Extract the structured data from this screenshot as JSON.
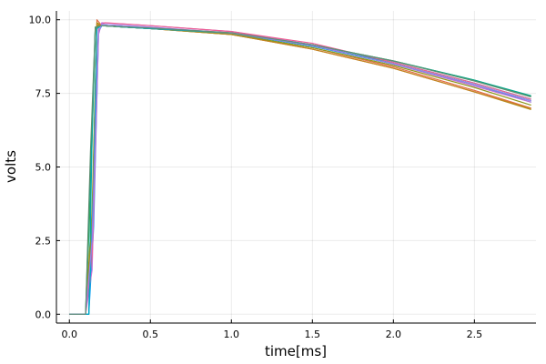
{
  "chart_data": {
    "type": "line",
    "title": "",
    "xlabel": "time[ms]",
    "ylabel": "volts",
    "xlim": [
      -0.08,
      2.88
    ],
    "ylim": [
      -0.3,
      10.3
    ],
    "xticks": [
      0.0,
      0.5,
      1.0,
      1.5,
      2.0,
      2.5
    ],
    "xtick_labels": [
      "0.0",
      "0.5",
      "1.0",
      "1.5",
      "2.0",
      "2.5"
    ],
    "yticks": [
      0.0,
      2.5,
      5.0,
      7.5,
      10.0
    ],
    "ytick_labels": [
      "0.0",
      "2.5",
      "5.0",
      "7.5",
      "10.0"
    ],
    "grid": true,
    "legend": "none",
    "series": [
      {
        "color": "#009af9",
        "x": [
          0.0,
          0.12,
          0.15,
          0.18,
          0.2,
          0.5,
          1.0,
          1.5,
          2.0,
          2.5,
          2.85
        ],
        "y": [
          0.0,
          0.0,
          3.0,
          9.6,
          9.8,
          9.7,
          9.55,
          9.1,
          8.5,
          7.8,
          7.2
        ]
      },
      {
        "color": "#e26f46",
        "x": [
          0.0,
          0.1,
          0.14,
          0.17,
          0.2,
          0.5,
          1.0,
          1.5,
          2.0,
          2.5,
          2.85
        ],
        "y": [
          0.0,
          0.0,
          2.5,
          10.0,
          9.8,
          9.7,
          9.5,
          9.05,
          8.4,
          7.6,
          7.0
        ]
      },
      {
        "color": "#3ea44e",
        "x": [
          0.0,
          0.1,
          0.13,
          0.16,
          0.2,
          0.5,
          1.0,
          1.5,
          2.0,
          2.5,
          2.85
        ],
        "y": [
          0.0,
          0.0,
          4.0,
          9.75,
          9.8,
          9.7,
          9.55,
          9.15,
          8.6,
          7.95,
          7.4
        ]
      },
      {
        "color": "#c271d2",
        "x": [
          0.0,
          0.1,
          0.14,
          0.18,
          0.2,
          0.5,
          1.0,
          1.5,
          2.0,
          2.5,
          2.85
        ],
        "y": [
          0.0,
          0.0,
          1.5,
          9.5,
          9.9,
          9.8,
          9.6,
          9.15,
          8.5,
          7.75,
          7.2
        ]
      },
      {
        "color": "#ac8e18",
        "x": [
          0.0,
          0.1,
          0.14,
          0.17,
          0.2,
          0.5,
          1.0,
          1.5,
          2.0,
          2.5,
          2.85
        ],
        "y": [
          0.0,
          0.0,
          3.5,
          9.9,
          9.8,
          9.7,
          9.5,
          9.0,
          8.35,
          7.55,
          6.95
        ]
      },
      {
        "color": "#00a9ad",
        "x": [
          0.0,
          0.12,
          0.14,
          0.16,
          0.2,
          0.5,
          1.0,
          1.5,
          2.0,
          2.5,
          2.85
        ],
        "y": [
          0.0,
          0.0,
          6.0,
          9.7,
          9.8,
          9.7,
          9.55,
          9.1,
          8.55,
          7.85,
          7.3
        ]
      },
      {
        "color": "#ed5e93",
        "x": [
          0.0,
          0.1,
          0.14,
          0.18,
          0.22,
          0.5,
          1.0,
          1.5,
          2.0,
          2.5,
          2.85
        ],
        "y": [
          0.0,
          0.0,
          2.0,
          9.8,
          9.9,
          9.8,
          9.6,
          9.2,
          8.55,
          7.85,
          7.3
        ]
      },
      {
        "color": "#c68225",
        "x": [
          0.0,
          0.1,
          0.14,
          0.17,
          0.2,
          0.5,
          1.0,
          1.5,
          2.0,
          2.5,
          2.85
        ],
        "y": [
          0.0,
          0.0,
          3.0,
          9.85,
          9.8,
          9.7,
          9.5,
          9.0,
          8.35,
          7.55,
          6.98
        ]
      },
      {
        "color": "#00a98d",
        "x": [
          0.0,
          0.1,
          0.13,
          0.16,
          0.2,
          0.5,
          1.0,
          1.5,
          2.0,
          2.5,
          2.85
        ],
        "y": [
          0.0,
          0.0,
          5.0,
          9.75,
          9.8,
          9.7,
          9.55,
          9.15,
          8.6,
          7.95,
          7.42
        ]
      },
      {
        "color": "#8e971e",
        "x": [
          0.0,
          0.1,
          0.14,
          0.17,
          0.2,
          0.5,
          1.0,
          1.5,
          2.0,
          2.5,
          2.85
        ],
        "y": [
          0.0,
          0.0,
          3.0,
          9.8,
          9.8,
          9.7,
          9.52,
          9.05,
          8.45,
          7.7,
          7.1
        ]
      },
      {
        "color": "#00a8cb",
        "x": [
          0.0,
          0.12,
          0.15,
          0.17,
          0.2,
          0.5,
          1.0,
          1.5,
          2.0,
          2.5,
          2.85
        ],
        "y": [
          0.0,
          0.0,
          4.5,
          9.7,
          9.8,
          9.7,
          9.55,
          9.1,
          8.5,
          7.8,
          7.25
        ]
      },
      {
        "color": "#9b7fe9",
        "x": [
          0.0,
          0.1,
          0.14,
          0.18,
          0.2,
          0.5,
          1.0,
          1.5,
          2.0,
          2.5,
          2.85
        ],
        "y": [
          0.0,
          0.0,
          2.5,
          9.6,
          9.85,
          9.75,
          9.55,
          9.12,
          8.5,
          7.8,
          7.25
        ]
      },
      {
        "color": "#608f73",
        "x": [
          0.0,
          0.1,
          0.13,
          0.16,
          0.2,
          0.5,
          1.0,
          1.5,
          2.0,
          2.5,
          2.85
        ],
        "y": [
          0.0,
          0.0,
          5.5,
          9.75,
          9.8,
          9.72,
          9.56,
          9.15,
          8.6,
          7.92,
          7.38
        ]
      }
    ]
  }
}
